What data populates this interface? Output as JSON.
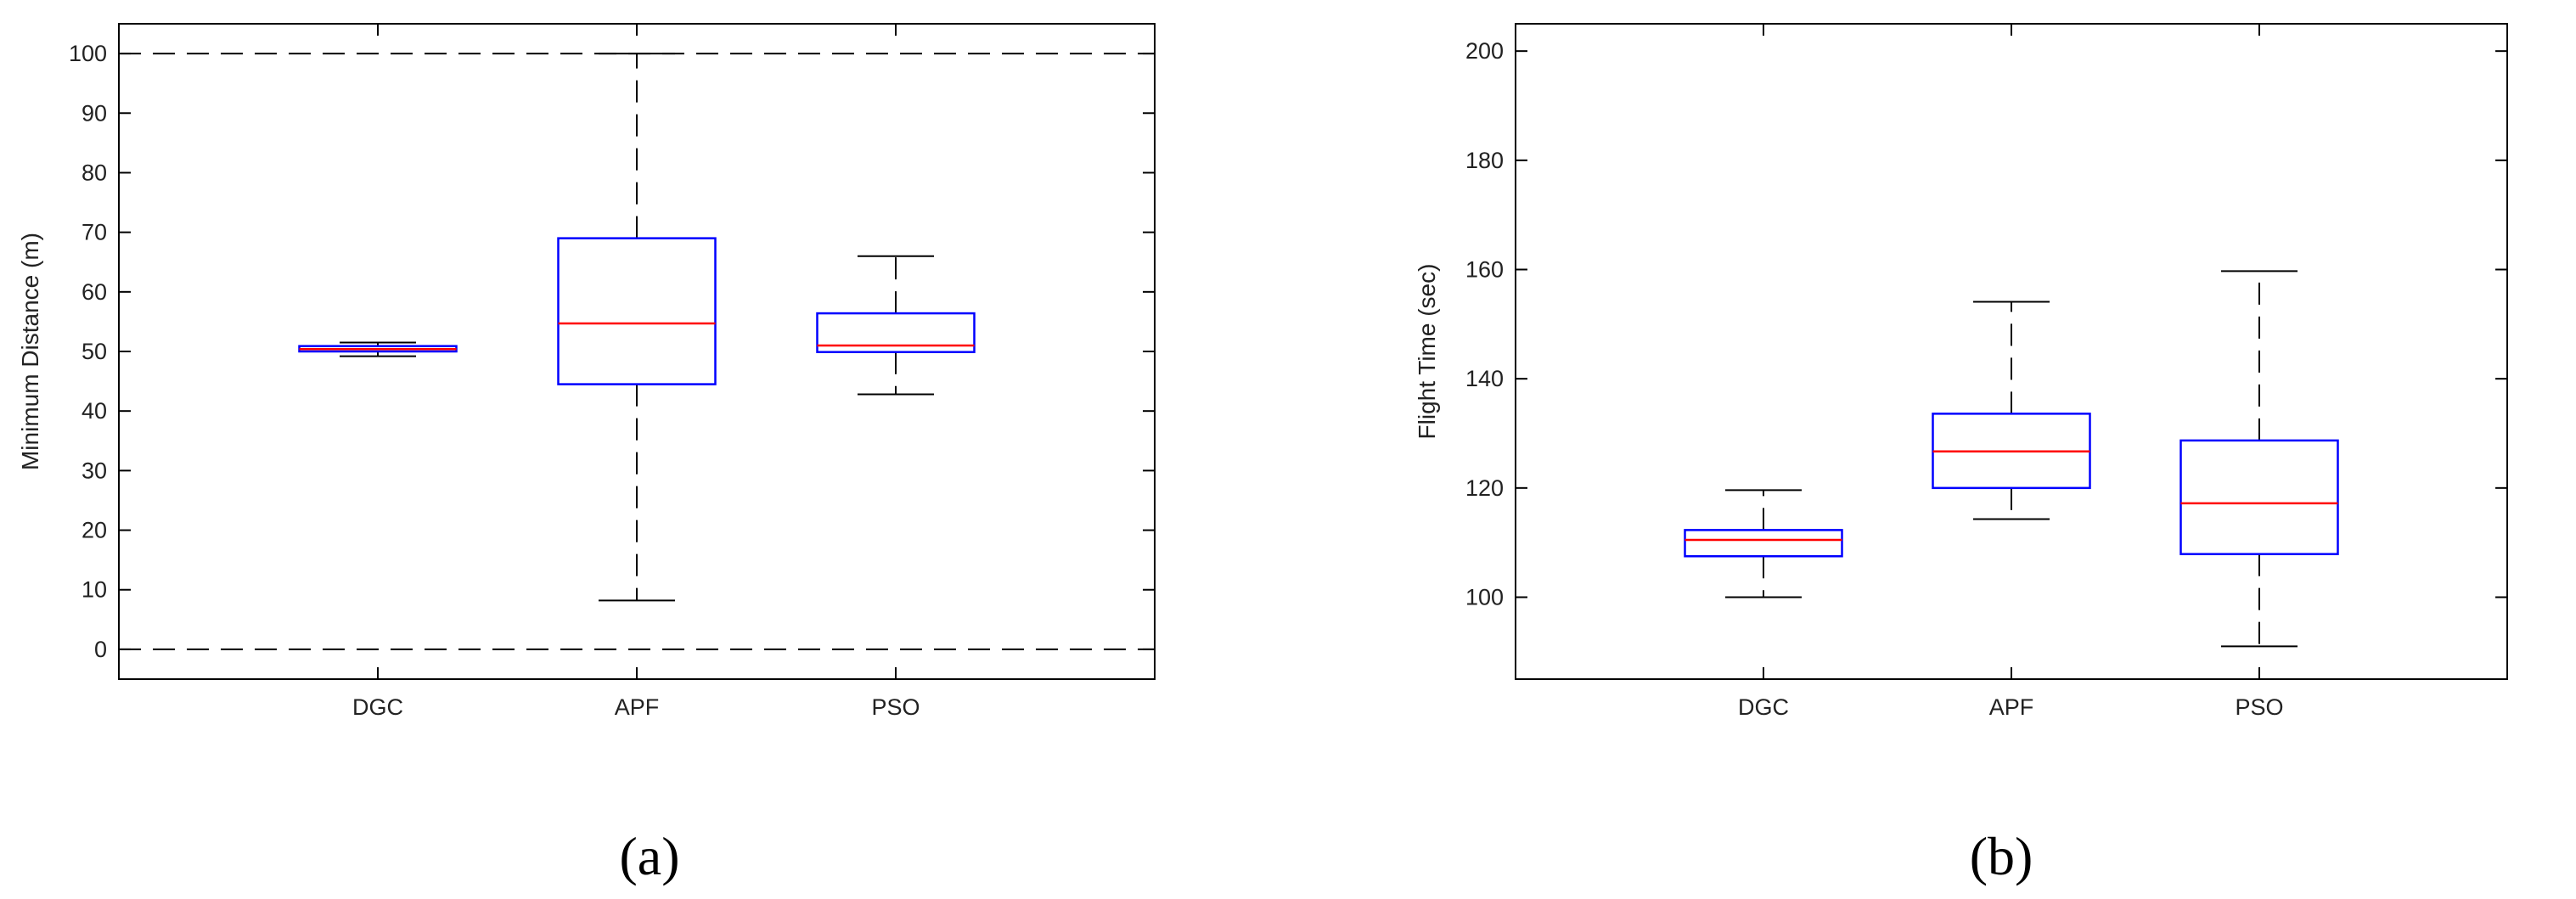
{
  "chart_data": [
    {
      "type": "box",
      "caption": "(a)",
      "ylabel": "Minimum Distance (m)",
      "xlabel": "",
      "ylim": [
        -5,
        105
      ],
      "yticks": [
        0,
        10,
        20,
        30,
        40,
        50,
        60,
        70,
        80,
        90,
        100
      ],
      "reference_lines": [
        0,
        100
      ],
      "colors": {
        "box": "#0000ff",
        "median": "#ff0000",
        "whisker": "#000000",
        "axis": "#000000"
      },
      "categories": [
        "DGC",
        "APF",
        "PSO"
      ],
      "boxes": [
        {
          "name": "DGC",
          "whisker_low": 49.2,
          "q1": 50.0,
          "median": 50.4,
          "q3": 50.9,
          "whisker_high": 51.5
        },
        {
          "name": "APF",
          "whisker_low": 8.2,
          "q1": 44.5,
          "median": 54.7,
          "q3": 69.0,
          "whisker_high": 100
        },
        {
          "name": "PSO",
          "whisker_low": 42.8,
          "q1": 49.9,
          "median": 51.0,
          "q3": 56.4,
          "whisker_high": 66.0
        }
      ]
    },
    {
      "type": "box",
      "caption": "(b)",
      "ylabel": "Flight Time (sec)",
      "xlabel": "",
      "ylim": [
        85,
        205
      ],
      "yticks": [
        100,
        120,
        140,
        160,
        180,
        200
      ],
      "reference_lines": [],
      "colors": {
        "box": "#0000ff",
        "median": "#ff0000",
        "whisker": "#000000",
        "axis": "#000000"
      },
      "categories": [
        "DGC",
        "APF",
        "PSO"
      ],
      "boxes": [
        {
          "name": "DGC",
          "whisker_low": 100.0,
          "q1": 107.5,
          "median": 110.5,
          "q3": 112.3,
          "whisker_high": 119.6
        },
        {
          "name": "APF",
          "whisker_low": 114.3,
          "q1": 120.0,
          "median": 126.7,
          "q3": 133.6,
          "whisker_high": 154.1
        },
        {
          "name": "PSO",
          "whisker_low": 91.0,
          "q1": 107.9,
          "median": 117.2,
          "q3": 128.7,
          "whisker_high": 159.7
        }
      ]
    }
  ]
}
